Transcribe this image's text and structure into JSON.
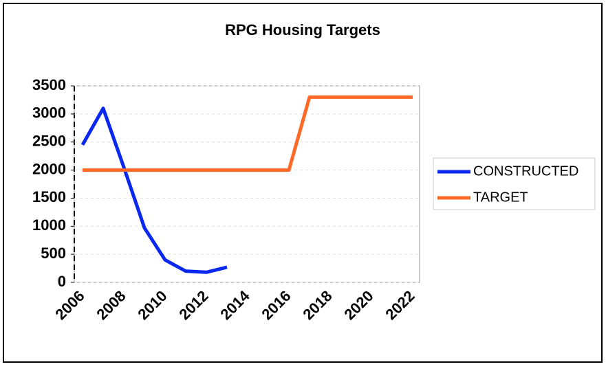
{
  "chart_data": {
    "type": "line",
    "title": "RPG Housing Targets",
    "categories": [
      2006,
      null,
      2008,
      null,
      2010,
      null,
      2012,
      null,
      2014,
      null,
      2016,
      null,
      2018,
      null,
      2020,
      null,
      2022
    ],
    "series": [
      {
        "name": "CONSTRUCTED",
        "color": "#0a28f0",
        "values": [
          2450,
          3100,
          2050,
          970,
          400,
          200,
          180,
          270,
          null,
          null,
          null,
          null,
          null,
          null,
          null,
          null,
          null
        ]
      },
      {
        "name": "TARGET",
        "color": "#ff6a28",
        "values": [
          2000,
          2000,
          2000,
          2000,
          2000,
          2000,
          2000,
          2000,
          2000,
          2000,
          2000,
          3300,
          3300,
          3300,
          3300,
          3300,
          3300
        ]
      }
    ],
    "ylim": [
      0,
      3500
    ],
    "yticks": [
      0,
      500,
      1000,
      1500,
      2000,
      2500,
      3000,
      3500
    ],
    "grid": true,
    "legend": "right"
  }
}
